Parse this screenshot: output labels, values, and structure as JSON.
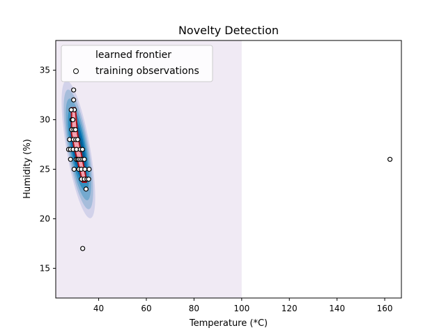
{
  "chart_data": {
    "type": "scatter",
    "title": "Novelty Detection",
    "xlabel": "Temperature (*C)",
    "ylabel": "Humidity (%)",
    "xlim": [
      22,
      167
    ],
    "ylim": [
      12,
      38
    ],
    "xticks": [
      40,
      60,
      80,
      100,
      120,
      140,
      160
    ],
    "yticks": [
      15,
      20,
      25,
      30,
      35
    ],
    "grid": false,
    "legend": {
      "placement": "top-left",
      "entries": [
        "learned frontier",
        "training observations"
      ]
    },
    "decision_region": {
      "x_range": [
        22,
        100
      ],
      "y_range": [
        12,
        38
      ],
      "color": "#f0eaf4"
    },
    "density_levels": [
      {
        "color": "#d2d2ea"
      },
      {
        "color": "#a6bddb"
      },
      {
        "color": "#74a9cf"
      },
      {
        "color": "#3690c0"
      },
      {
        "color": "#0570b0"
      },
      {
        "color": "#045a8d"
      }
    ],
    "frontier": {
      "color": "#a50f15",
      "fill": "#f4a0b0",
      "points": [
        [
          28.6,
          31.2
        ],
        [
          30.2,
          31.2
        ],
        [
          31.2,
          28.5
        ],
        [
          32.8,
          26.5
        ],
        [
          34.6,
          24.3
        ],
        [
          34.8,
          23.7
        ],
        [
          33.2,
          23.7
        ],
        [
          31.4,
          25.6
        ],
        [
          29.7,
          27.2
        ],
        [
          28.6,
          28.6
        ]
      ]
    },
    "series": [
      {
        "type": "scatter",
        "marker_face": "#ffffff",
        "marker_edge": "#000000",
        "points": [
          [
            29.5,
            33
          ],
          [
            29.5,
            32
          ],
          [
            29.8,
            31
          ],
          [
            28.5,
            31
          ],
          [
            28.8,
            30
          ],
          [
            29.2,
            30
          ],
          [
            28.7,
            29
          ],
          [
            29.6,
            29
          ],
          [
            30.3,
            29
          ],
          [
            27.8,
            28
          ],
          [
            29.4,
            28
          ],
          [
            30.4,
            28
          ],
          [
            31.2,
            28
          ],
          [
            27.4,
            27
          ],
          [
            28.2,
            27
          ],
          [
            29.3,
            27
          ],
          [
            30.7,
            27
          ],
          [
            32.3,
            27
          ],
          [
            33.2,
            27
          ],
          [
            28.2,
            26
          ],
          [
            30.6,
            26
          ],
          [
            31.2,
            26
          ],
          [
            31.7,
            26
          ],
          [
            32.5,
            26
          ],
          [
            33.3,
            26
          ],
          [
            34.0,
            26
          ],
          [
            29.7,
            25
          ],
          [
            31.7,
            25
          ],
          [
            32.7,
            25
          ],
          [
            34.2,
            25
          ],
          [
            36.0,
            25
          ],
          [
            32.8,
            24
          ],
          [
            34.0,
            24
          ],
          [
            35.1,
            24
          ],
          [
            35.8,
            24
          ],
          [
            34.7,
            23
          ],
          [
            33.3,
            17
          ],
          [
            162.2,
            26
          ]
        ]
      }
    ]
  }
}
